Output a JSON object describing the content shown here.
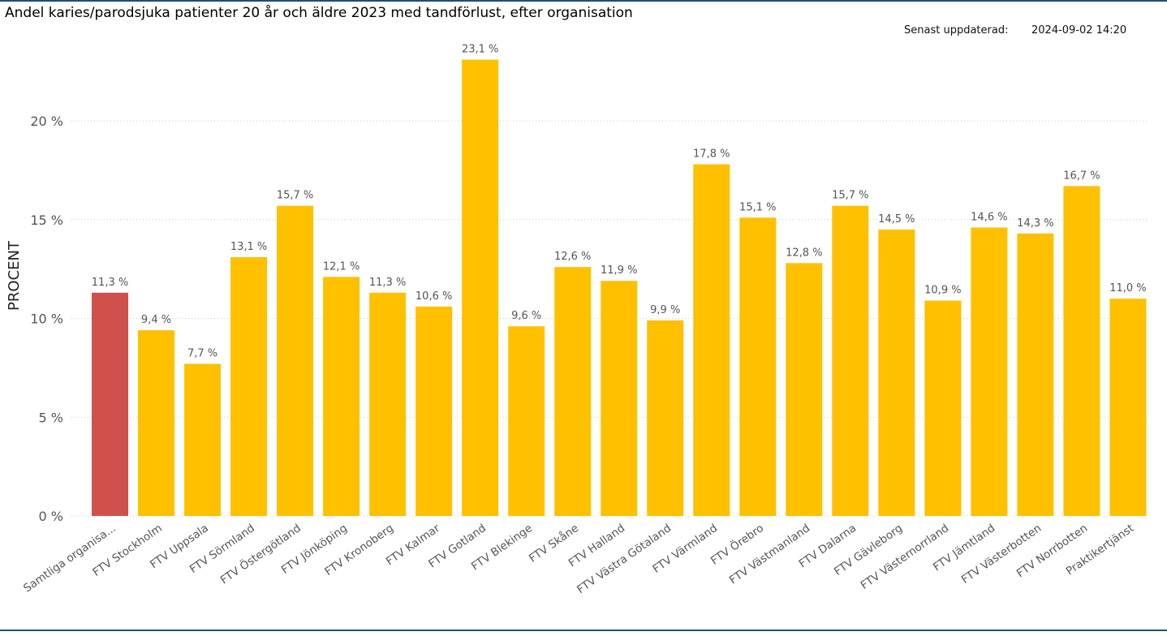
{
  "title": "Andel karies/parodsjuka patienter 20 år och äldre 2023 med tandförlust, efter organisation",
  "updated": {
    "label": "Senast uppdaterad:",
    "value": "2024-09-02 14:20"
  },
  "colors": {
    "highlight": "#d0504b",
    "bar": "#ffc000",
    "grid": "#c8c8c8",
    "rule": "#1f4e79"
  },
  "chart_data": {
    "type": "bar",
    "title": "Andel karies/parodsjuka patienter 20 år och äldre 2023 med tandförlust, efter organisation",
    "xlabel": "",
    "ylabel": "PROCENT",
    "ylim": [
      0,
      25
    ],
    "yticks": [
      0,
      5,
      10,
      15,
      20
    ],
    "ytick_labels": [
      "0 %",
      "5 %",
      "10 %",
      "15 %",
      "20 %"
    ],
    "grid": true,
    "categories": [
      "Samtliga organisa...",
      "FTV Stockholm",
      "FTV Uppsala",
      "FTV Sörmland",
      "FTV Östergötland",
      "FTV Jönköping",
      "FTV Kronoberg",
      "FTV Kalmar",
      "FTV Gotland",
      "FTV Blekinge",
      "FTV Skåne",
      "FTV Halland",
      "FTV Västra Götaland",
      "FTV Värmland",
      "FTV Örebro",
      "FTV Västmanland",
      "FTV Dalarna",
      "FTV Gävleborg",
      "FTV Västernorrland",
      "FTV Jämtland",
      "FTV Västerbotten",
      "FTV Norrbotten",
      "Praktikertjänst"
    ],
    "values": [
      11.3,
      9.4,
      7.7,
      13.1,
      15.7,
      12.1,
      11.3,
      10.6,
      23.1,
      9.6,
      12.6,
      11.9,
      9.9,
      17.8,
      15.1,
      12.8,
      15.7,
      14.5,
      10.9,
      14.6,
      14.3,
      16.7,
      11.0
    ],
    "value_labels": [
      "11,3 %",
      "9,4 %",
      "7,7 %",
      "13,1 %",
      "15,7 %",
      "12,1 %",
      "11,3 %",
      "10,6 %",
      "23,1 %",
      "9,6 %",
      "12,6 %",
      "11,9 %",
      "9,9 %",
      "17,8 %",
      "15,1 %",
      "12,8 %",
      "15,7 %",
      "14,5 %",
      "10,9 %",
      "14,6 %",
      "14,3 %",
      "16,7 %",
      "11,0 %"
    ],
    "highlight_index": 0
  }
}
